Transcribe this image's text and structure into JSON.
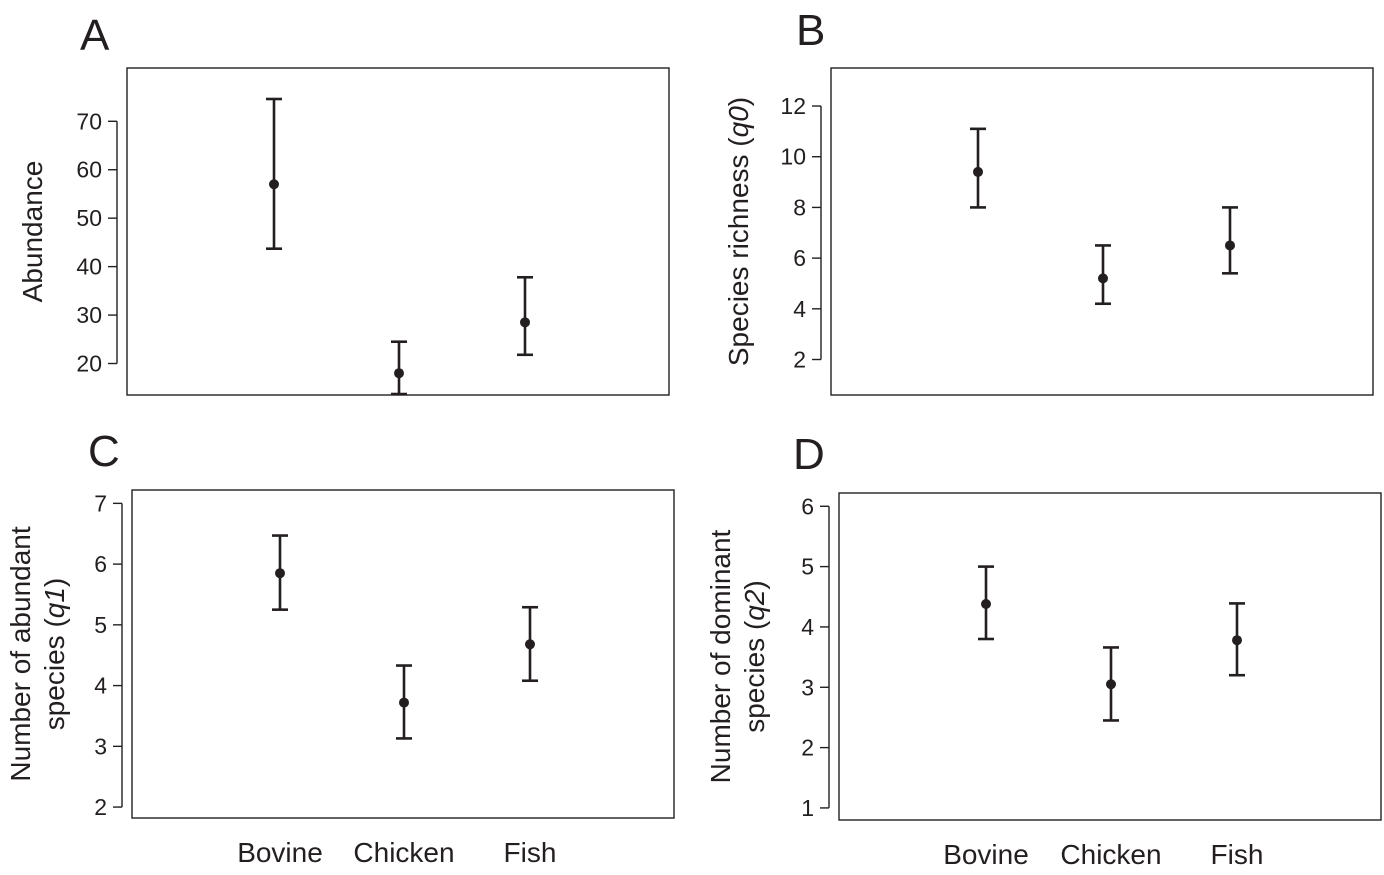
{
  "chart_data": [
    {
      "type": "scatter",
      "panel_label": "A",
      "ylabel": "Abundance",
      "ylabel_italic_part": "",
      "categories": [
        "Bovine",
        "Chicken",
        "Fish"
      ],
      "show_xlabels": false,
      "yticks": [
        20,
        30,
        40,
        50,
        60,
        70
      ],
      "ylim": [
        13.5,
        81
      ],
      "grid": false,
      "values": [
        57,
        18,
        28.5
      ],
      "lower": [
        43.7,
        13.7,
        21.8
      ],
      "upper": [
        74.6,
        24.5,
        37.8
      ]
    },
    {
      "type": "scatter",
      "panel_label": "B",
      "ylabel": "Species richness (",
      "ylabel_italic_part": "q0",
      "ylabel_suffix": ")",
      "categories": [
        "Bovine",
        "Chicken",
        "Fish"
      ],
      "show_xlabels": false,
      "yticks": [
        2,
        4,
        6,
        8,
        10,
        12
      ],
      "ylim": [
        0.6,
        13.5
      ],
      "grid": false,
      "values": [
        9.4,
        5.2,
        6.5
      ],
      "lower": [
        8.0,
        4.2,
        5.4
      ],
      "upper": [
        11.1,
        6.5,
        8.0
      ]
    },
    {
      "type": "scatter",
      "panel_label": "C",
      "ylabel_line1": "Number of abundant",
      "ylabel_line2_prefix": "species (",
      "ylabel_italic_part": "q1",
      "ylabel_suffix": ")",
      "categories": [
        "Bovine",
        "Chicken",
        "Fish"
      ],
      "show_xlabels": true,
      "yticks": [
        2,
        3,
        4,
        5,
        6,
        7
      ],
      "ylim": [
        1.82,
        7.22
      ],
      "grid": false,
      "values": [
        5.85,
        3.72,
        4.68
      ],
      "lower": [
        5.25,
        3.13,
        4.08
      ],
      "upper": [
        6.47,
        4.33,
        5.29
      ]
    },
    {
      "type": "scatter",
      "panel_label": "D",
      "ylabel_line1": "Number of dominant",
      "ylabel_line2_prefix": "species (",
      "ylabel_italic_part": "q2",
      "ylabel_suffix": ")",
      "categories": [
        "Bovine",
        "Chicken",
        "Fish"
      ],
      "show_xlabels": true,
      "yticks": [
        1,
        2,
        3,
        4,
        5,
        6
      ],
      "ylim": [
        0.8,
        6.22
      ],
      "grid": false,
      "values": [
        4.38,
        3.05,
        3.78
      ],
      "lower": [
        3.8,
        2.45,
        3.2
      ],
      "upper": [
        5.0,
        3.66,
        4.39
      ]
    }
  ]
}
